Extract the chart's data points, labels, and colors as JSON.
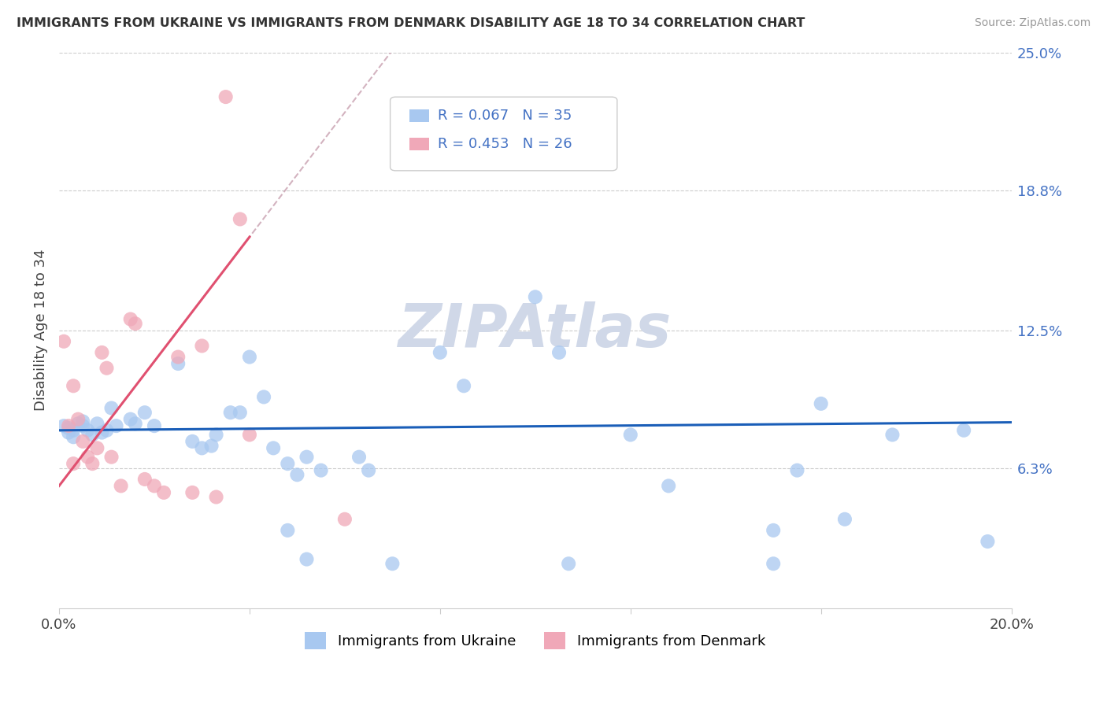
{
  "title": "IMMIGRANTS FROM UKRAINE VS IMMIGRANTS FROM DENMARK DISABILITY AGE 18 TO 34 CORRELATION CHART",
  "source": "Source: ZipAtlas.com",
  "ylabel": "Disability Age 18 to 34",
  "xlim": [
    0.0,
    0.2
  ],
  "ylim": [
    0.0,
    0.25
  ],
  "ytick_right": [
    0.063,
    0.125,
    0.188,
    0.25
  ],
  "ytick_right_labels": [
    "6.3%",
    "12.5%",
    "18.8%",
    "25.0%"
  ],
  "ukraine_color": "#a8c8f0",
  "denmark_color": "#f0a8b8",
  "ukraine_line_color": "#1a5eb8",
  "denmark_line_color": "#e05070",
  "denmark_dash_color": "#c8a0b0",
  "R_ukraine": 0.067,
  "N_ukraine": 35,
  "R_denmark": 0.453,
  "N_denmark": 26,
  "ukraine_x": [
    0.001,
    0.002,
    0.002,
    0.003,
    0.003,
    0.004,
    0.005,
    0.005,
    0.006,
    0.007,
    0.008,
    0.009,
    0.01,
    0.011,
    0.012,
    0.015,
    0.016,
    0.018,
    0.02,
    0.025,
    0.028,
    0.032,
    0.036,
    0.04,
    0.043,
    0.05,
    0.052,
    0.063,
    0.065,
    0.08,
    0.085,
    0.1,
    0.105,
    0.128,
    0.16
  ],
  "ukraine_y": [
    0.082,
    0.079,
    0.081,
    0.08,
    0.077,
    0.083,
    0.082,
    0.084,
    0.08,
    0.078,
    0.083,
    0.079,
    0.08,
    0.09,
    0.082,
    0.085,
    0.083,
    0.088,
    0.082,
    0.11,
    0.075,
    0.073,
    0.088,
    0.113,
    0.095,
    0.06,
    0.068,
    0.068,
    0.062,
    0.115,
    0.1,
    0.14,
    0.115,
    0.055,
    0.092
  ],
  "ukraine_x2": [
    0.03,
    0.033,
    0.038,
    0.045,
    0.048,
    0.055,
    0.12,
    0.15,
    0.155,
    0.175,
    0.19,
    0.195
  ],
  "ukraine_y2": [
    0.072,
    0.078,
    0.088,
    0.072,
    0.065,
    0.062,
    0.078,
    0.035,
    0.062,
    0.078,
    0.08,
    0.03
  ],
  "ukraine_x3": [
    0.048,
    0.052,
    0.07,
    0.107,
    0.15,
    0.165
  ],
  "ukraine_y3": [
    0.035,
    0.022,
    0.02,
    0.02,
    0.02,
    0.04
  ],
  "denmark_x": [
    0.001,
    0.002,
    0.003,
    0.003,
    0.004,
    0.005,
    0.006,
    0.007,
    0.008,
    0.009,
    0.01,
    0.011,
    0.013,
    0.015,
    0.016,
    0.018,
    0.02,
    0.022,
    0.025,
    0.028,
    0.03,
    0.033,
    0.035,
    0.038,
    0.04,
    0.06
  ],
  "denmark_y": [
    0.12,
    0.082,
    0.1,
    0.065,
    0.085,
    0.075,
    0.068,
    0.065,
    0.072,
    0.115,
    0.108,
    0.068,
    0.055,
    0.13,
    0.128,
    0.058,
    0.055,
    0.052,
    0.113,
    0.052,
    0.118,
    0.05,
    0.23,
    0.175,
    0.078,
    0.04
  ],
  "watermark_text": "ZIPAtlas",
  "watermark_color": "#d0d8e8"
}
